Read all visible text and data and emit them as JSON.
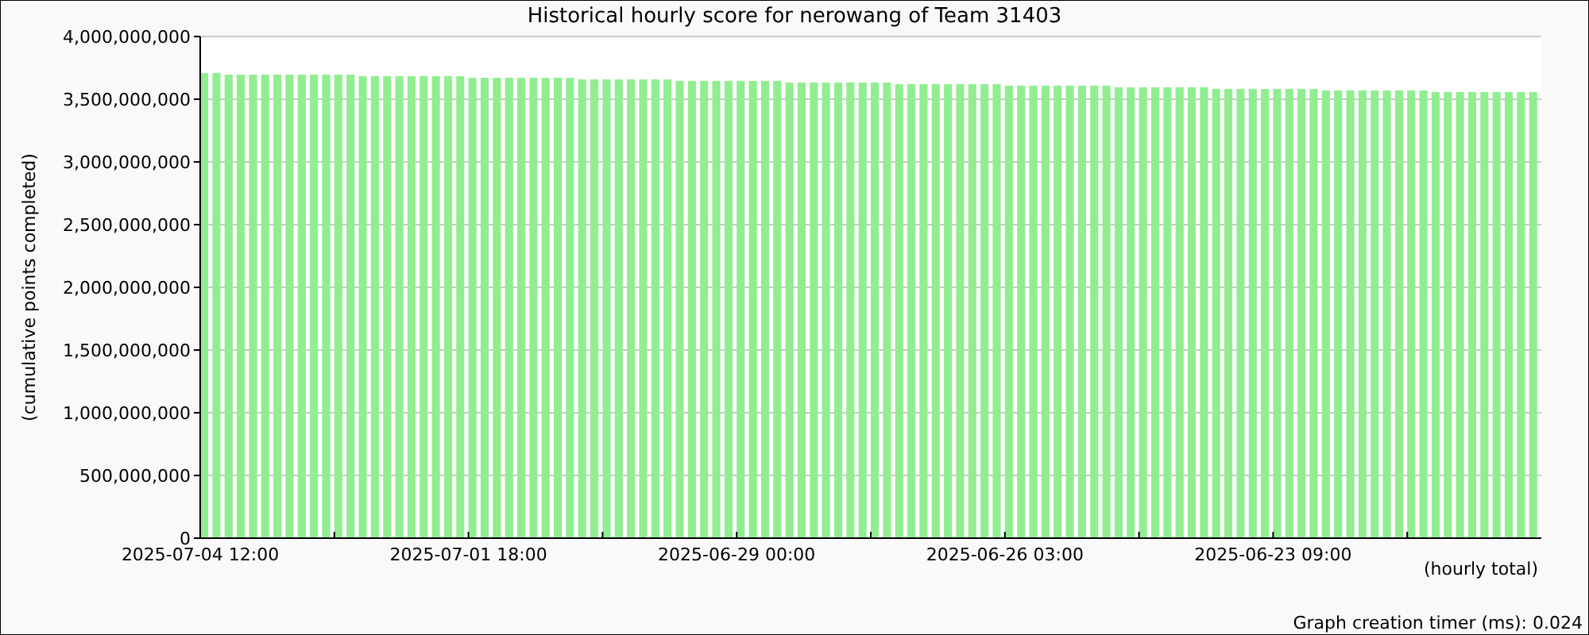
{
  "chart_data": {
    "type": "bar",
    "title": "Historical hourly score for nerowang of Team 31403",
    "ylabel": "(cumulative points completed)",
    "xlabel": "(hourly total)",
    "annotations": [
      "Graph creation timer (ms): 0.024"
    ],
    "categories": [
      "2025-07-04 12:00",
      null,
      null,
      null,
      null,
      null,
      null,
      null,
      null,
      null,
      null,
      null,
      null,
      null,
      null,
      null,
      null,
      null,
      null,
      null,
      null,
      null,
      "2025-07-01 18:00",
      null,
      null,
      null,
      null,
      null,
      null,
      null,
      null,
      null,
      null,
      null,
      null,
      null,
      null,
      null,
      null,
      null,
      null,
      null,
      null,
      null,
      "2025-06-29 00:00",
      null,
      null,
      null,
      null,
      null,
      null,
      null,
      null,
      null,
      null,
      null,
      null,
      null,
      null,
      null,
      null,
      null,
      null,
      null,
      null,
      null,
      "2025-06-26 03:00",
      null,
      null,
      null,
      null,
      null,
      null,
      null,
      null,
      null,
      null,
      null,
      null,
      null,
      null,
      null,
      null,
      null,
      null,
      null,
      null,
      null,
      "2025-06-23 09:00",
      null,
      null,
      null,
      null,
      null,
      null,
      null,
      null,
      null,
      null,
      null,
      null,
      null,
      null,
      null,
      null,
      null,
      null,
      null,
      null,
      null
    ],
    "values": [
      3709000000,
      3709000000,
      3696000000,
      3696000000,
      3696000000,
      3696000000,
      3696000000,
      3696000000,
      3696000000,
      3696000000,
      3696000000,
      3696000000,
      3696000000,
      3684000000,
      3684000000,
      3684000000,
      3684000000,
      3684000000,
      3684000000,
      3684000000,
      3684000000,
      3684000000,
      3671000000,
      3671000000,
      3671000000,
      3671000000,
      3671000000,
      3671000000,
      3671000000,
      3671000000,
      3671000000,
      3658000000,
      3658000000,
      3658000000,
      3658000000,
      3658000000,
      3658000000,
      3658000000,
      3658000000,
      3646000000,
      3646000000,
      3646000000,
      3646000000,
      3646000000,
      3646000000,
      3646000000,
      3646000000,
      3646000000,
      3633000000,
      3633000000,
      3633000000,
      3633000000,
      3633000000,
      3633000000,
      3633000000,
      3633000000,
      3633000000,
      3620000000,
      3620000000,
      3620000000,
      3620000000,
      3620000000,
      3620000000,
      3620000000,
      3620000000,
      3620000000,
      3608000000,
      3608000000,
      3608000000,
      3608000000,
      3608000000,
      3608000000,
      3608000000,
      3608000000,
      3608000000,
      3595000000,
      3595000000,
      3595000000,
      3595000000,
      3595000000,
      3595000000,
      3595000000,
      3595000000,
      3582000000,
      3582000000,
      3582000000,
      3582000000,
      3582000000,
      3582000000,
      3582000000,
      3582000000,
      3582000000,
      3570000000,
      3570000000,
      3570000000,
      3570000000,
      3570000000,
      3570000000,
      3570000000,
      3570000000,
      3570000000,
      3557000000,
      3557000000,
      3557000000,
      3557000000,
      3557000000,
      3557000000,
      3557000000,
      3557000000,
      3557000000
    ],
    "color": "#90ee90",
    "ylim": [
      0,
      4000000000
    ],
    "yticks": [
      {
        "value": 0,
        "label": "0"
      },
      {
        "value": 500000000,
        "label": "500,000,000"
      },
      {
        "value": 1000000000,
        "label": "1,000,000,000"
      },
      {
        "value": 1500000000,
        "label": "1,500,000,000"
      },
      {
        "value": 2000000000,
        "label": "2,000,000,000"
      },
      {
        "value": 2500000000,
        "label": "2,500,000,000"
      },
      {
        "value": 3000000000,
        "label": "3,000,000,000"
      },
      {
        "value": 3500000000,
        "label": "3,500,000,000"
      },
      {
        "value": 4000000000,
        "label": "4,000,000,000"
      }
    ],
    "grid": "y"
  }
}
